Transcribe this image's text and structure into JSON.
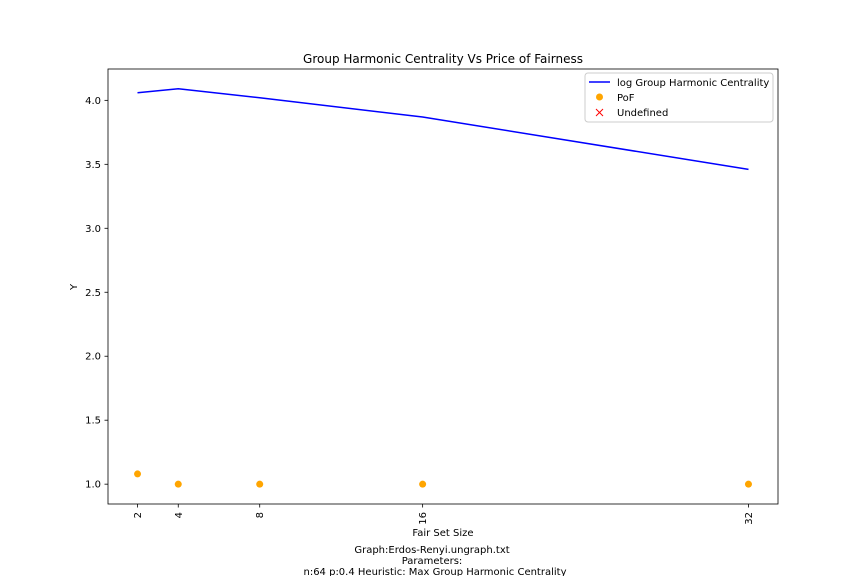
{
  "chart_data": {
    "type": "line",
    "title": "Group Harmonic Centrality Vs Price of Fairness",
    "xlabel": "Fair Set Size",
    "ylabel": "Y",
    "x": [
      2,
      4,
      8,
      16,
      32
    ],
    "x_ticks": [
      2,
      4,
      8,
      16,
      32
    ],
    "xlim": [
      0.55,
      33.45
    ],
    "ylim": [
      0.845,
      4.245
    ],
    "y_ticks": [
      1.0,
      1.5,
      2.0,
      2.5,
      3.0,
      3.5,
      4.0
    ],
    "grid": false,
    "legend_position": "top-right",
    "series": [
      {
        "name": "log Group Harmonic Centrality",
        "kind": "line",
        "color": "#0000ff",
        "values": [
          4.06,
          4.09,
          4.02,
          3.87,
          3.46
        ]
      },
      {
        "name": "PoF",
        "kind": "scatter",
        "marker": "circle",
        "color": "#ffa500",
        "values": [
          1.08,
          1.0,
          1.0,
          1.0,
          1.0
        ]
      },
      {
        "name": "Undefined",
        "kind": "scatter",
        "marker": "x",
        "color": "#ff0000",
        "values": []
      }
    ],
    "caption_lines": [
      "Graph:Erdos-Renyi.ungraph.txt",
      "Parameters:",
      "n:64 p:0.4  Heuristic: Max Group Harmonic Centrality"
    ]
  }
}
